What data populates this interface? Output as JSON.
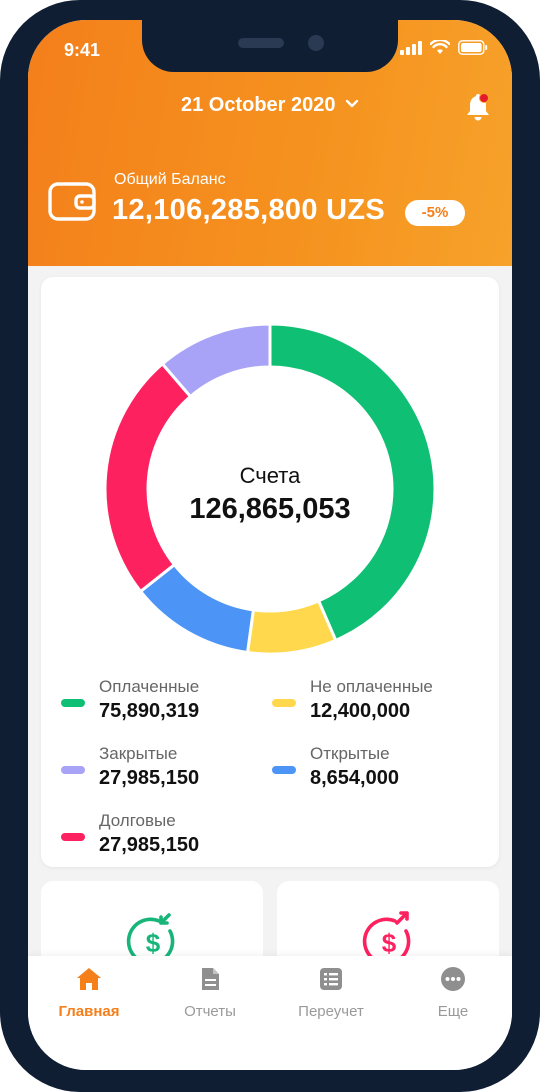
{
  "status": {
    "time": "9:41"
  },
  "header": {
    "date": "21 October 2020",
    "balance_label": "Общий Баланс",
    "balance_value": "12,106,285,800 UZS",
    "change_badge": "-5%"
  },
  "accounts": {
    "title": "Счета",
    "total": "126,865,053",
    "legend": [
      {
        "label": "Оплаченные",
        "value": "75,890,319",
        "color": "#0fbf73"
      },
      {
        "label": "Не оплаченные",
        "value": "12,400,000",
        "color": "#ffd84d"
      },
      {
        "label": "Закрытые",
        "value": "27,985,150",
        "color": "#a8a3f6"
      },
      {
        "label": "Открытые",
        "value": "8,654,000",
        "color": "#4c95f7"
      },
      {
        "label": "Долговые",
        "value": "27,985,150",
        "color": "#fe2160"
      }
    ]
  },
  "chart_data": {
    "type": "pie",
    "title": "Счета",
    "center_value": "126,865,053",
    "categories": [
      "Оплаченные",
      "Не оплаченные",
      "Открытые",
      "Долговые",
      "Закрытые"
    ],
    "values": [
      75890319,
      12400000,
      8654000,
      27985150,
      27985150
    ],
    "colors": [
      "#0fbf73",
      "#ffd84d",
      "#4c95f7",
      "#fe2160",
      "#a8a3f6"
    ],
    "visual_shares": [
      0.5,
      0.1,
      0.14,
      0.28,
      0.13
    ]
  },
  "mini_cards": [
    {
      "icon": "dollar-in-icon",
      "color": "#17b57a"
    },
    {
      "icon": "dollar-out-icon",
      "color": "#fe2160"
    }
  ],
  "tabbar": {
    "items": [
      {
        "label": "Главная",
        "icon": "home-icon",
        "active": true
      },
      {
        "label": "Отчеты",
        "icon": "report-icon",
        "active": false
      },
      {
        "label": "Переучет",
        "icon": "list-icon",
        "active": false
      },
      {
        "label": "Еще",
        "icon": "more-icon",
        "active": false
      }
    ]
  },
  "colors": {
    "accent": "#f47f1b",
    "frame": "#0f1e33"
  }
}
